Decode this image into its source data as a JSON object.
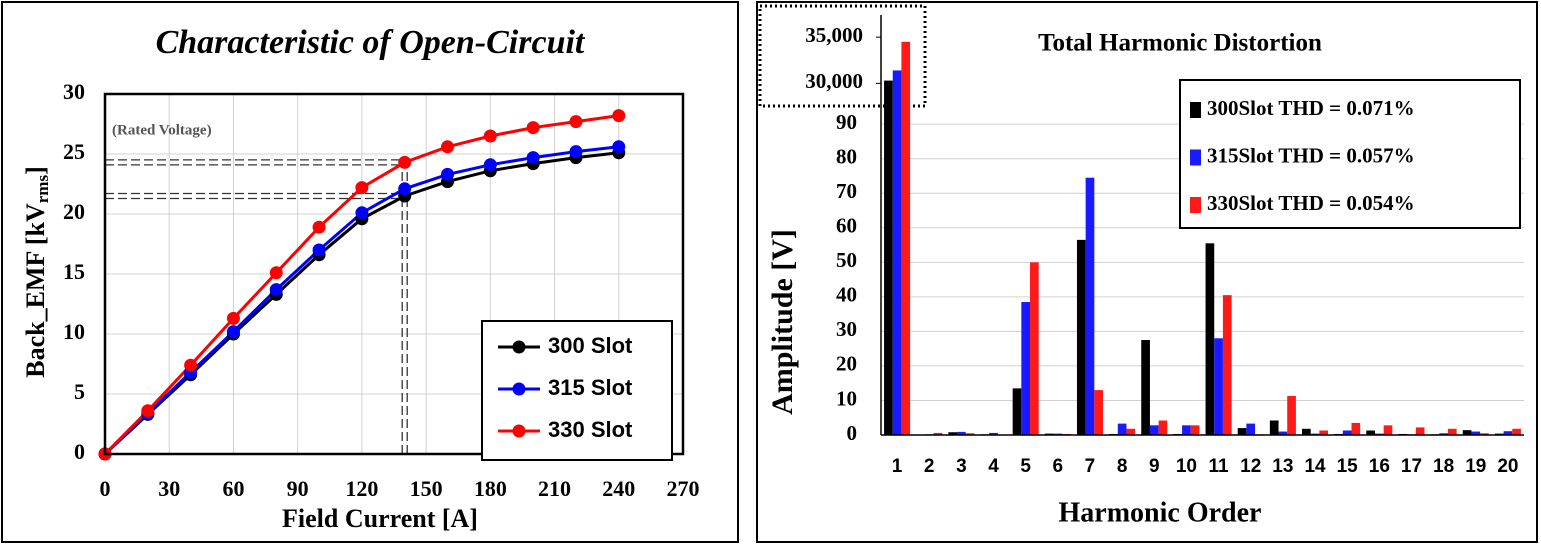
{
  "chart_data": [
    {
      "type": "line",
      "title": "Characteristic of Open-Circuit",
      "x_label": "Field Current [A]",
      "y_label": [
        "Back_EMF [kV",
        "rms",
        "]"
      ],
      "annotation": "(Rated Voltage)",
      "x": [
        0,
        20,
        40,
        60,
        80,
        100,
        120,
        140,
        160,
        180,
        200,
        220,
        240
      ],
      "series": [
        {
          "name": "300 Slot",
          "color": "#000000",
          "values": [
            0,
            3.3,
            6.6,
            10.0,
            13.3,
            16.6,
            19.6,
            21.5,
            22.7,
            23.6,
            24.2,
            24.7,
            25.1
          ]
        },
        {
          "name": "315 Slot",
          "color": "#0000ff",
          "values": [
            0,
            3.4,
            6.8,
            10.2,
            13.7,
            17.0,
            20.1,
            22.1,
            23.3,
            24.1,
            24.7,
            25.2,
            25.6
          ]
        },
        {
          "name": "330 Slot",
          "color": "#ff0000",
          "values": [
            0,
            3.6,
            7.4,
            11.3,
            15.1,
            18.9,
            22.2,
            24.3,
            25.6,
            26.5,
            27.2,
            27.7,
            28.2
          ]
        }
      ],
      "xlim": [
        0,
        270
      ],
      "xticks": [
        0,
        30,
        60,
        90,
        120,
        150,
        180,
        210,
        240,
        270
      ],
      "ylim": [
        0,
        30
      ],
      "yticks": [
        0,
        5,
        10,
        15,
        20,
        25,
        30
      ],
      "grid": true,
      "legend": "lower right",
      "reference_lines": {
        "x": 140,
        "y": [
          21.5,
          24.3
        ]
      }
    },
    {
      "type": "bar",
      "title": "Total Harmonic Distortion",
      "x_label": "Harmonic Order",
      "y_label": "Amplitude [V]",
      "categories": [
        1,
        2,
        3,
        4,
        5,
        6,
        7,
        8,
        9,
        10,
        11,
        12,
        13,
        14,
        15,
        16,
        17,
        18,
        19,
        20
      ],
      "series": [
        {
          "name": "300Slot THD = 0.071%",
          "color": "#000000",
          "values": [
            30300,
            0.1,
            0.8,
            0.2,
            13.5,
            0.4,
            56.5,
            0.3,
            27.5,
            0.3,
            55.5,
            2,
            4.2,
            1.8,
            0.3,
            1.3,
            0.3,
            0.2,
            1.4,
            0.4
          ]
        },
        {
          "name": "315Slot THD = 0.057%",
          "color": "#1a1aff",
          "values": [
            31400,
            0.2,
            0.9,
            0.6,
            38.5,
            0.4,
            74.5,
            3.3,
            2.8,
            2.8,
            28,
            3.3,
            1,
            0.4,
            1.3,
            0.4,
            0.2,
            0.5,
            1.0,
            1.1
          ]
        },
        {
          "name": "330Slot THD = 0.054%",
          "color": "#ff1a1a",
          "values": [
            34500,
            0.6,
            0.5,
            0.1,
            50,
            0.3,
            13,
            1.8,
            4.2,
            2.8,
            40.5,
            0.2,
            11.3,
            1.3,
            3.5,
            2.8,
            2.2,
            1.8,
            0.5,
            1.8
          ]
        }
      ],
      "ylim": [
        0,
        97
      ],
      "yticks": [
        0,
        10,
        20,
        30,
        40,
        50,
        60,
        70,
        80,
        90
      ],
      "y_break": {
        "ylim": [
          28200,
          37400
        ],
        "yticks": [
          {
            "value": 30000,
            "label": "30,000"
          },
          {
            "value": 35000,
            "label": "35,000"
          }
        ]
      },
      "grid": true,
      "legend": "upper right"
    }
  ]
}
